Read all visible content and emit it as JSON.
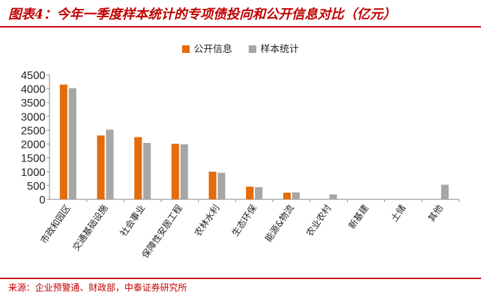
{
  "title": "图表4：今年一季度样本统计的专项债投向和公开信息对比（亿元）",
  "source": "来源：企业预警通、财政部，中泰证券研究所",
  "colors": {
    "accent": "#c00000",
    "series_a": "#e46c0a",
    "series_b": "#a6a6a6"
  },
  "chart_data": {
    "type": "bar",
    "categories": [
      "市政和园区",
      "交通基础设施",
      "社会事业",
      "保障性安居工程",
      "农林水利",
      "生态环保",
      "能源&物流",
      "农业农村",
      "新基建",
      "土储",
      "其他"
    ],
    "series": [
      {
        "name": "公开信息",
        "values": [
          4150,
          2310,
          2250,
          2010,
          1000,
          460,
          240,
          0,
          0,
          0,
          0
        ]
      },
      {
        "name": "样本统计",
        "values": [
          4020,
          2520,
          2040,
          1990,
          960,
          440,
          250,
          180,
          20,
          0,
          530
        ]
      }
    ],
    "y_ticks": [
      "0",
      "500",
      "1000",
      "1500",
      "2000",
      "2500",
      "3000",
      "3500",
      "4000",
      "4500"
    ],
    "ylim": [
      0,
      4500
    ],
    "grid": false,
    "legend_position": "top-center"
  }
}
